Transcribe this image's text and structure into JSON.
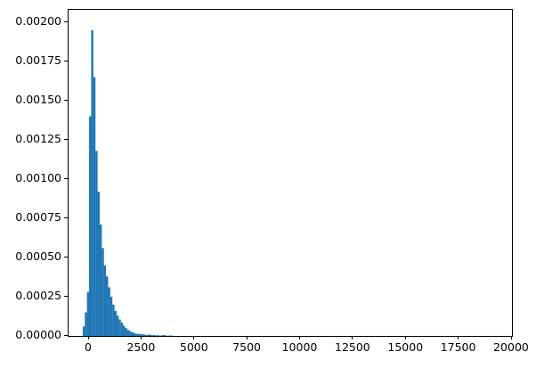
{
  "figure": {
    "background": "#ffffff",
    "frame_color": "#000000"
  },
  "chart_data": {
    "type": "bar",
    "subtype": "histogram",
    "title": "",
    "xlabel": "",
    "ylabel": "",
    "legend": null,
    "grid": false,
    "xlim": [
      -970,
      20000
    ],
    "ylim": [
      0,
      0.00208
    ],
    "bar_color": "#1f77b4",
    "x_ticks": [
      {
        "value": 0,
        "label": "0"
      },
      {
        "value": 2500,
        "label": "2500"
      },
      {
        "value": 5000,
        "label": "5000"
      },
      {
        "value": 7500,
        "label": "7500"
      },
      {
        "value": 10000,
        "label": "10000"
      },
      {
        "value": 12500,
        "label": "12500"
      },
      {
        "value": 15000,
        "label": "15000"
      },
      {
        "value": 17500,
        "label": "17500"
      },
      {
        "value": 20000,
        "label": "20000"
      }
    ],
    "y_ticks": [
      {
        "value": 0.0,
        "label": "0.00000"
      },
      {
        "value": 0.00025,
        "label": "0.00025"
      },
      {
        "value": 0.0005,
        "label": "0.00050"
      },
      {
        "value": 0.00075,
        "label": "0.00075"
      },
      {
        "value": 0.001,
        "label": "0.00100"
      },
      {
        "value": 0.00125,
        "label": "0.00125"
      },
      {
        "value": 0.0015,
        "label": "0.00150"
      },
      {
        "value": 0.00175,
        "label": "0.00175"
      },
      {
        "value": 0.002,
        "label": "0.00200"
      }
    ],
    "bins": {
      "start": -300,
      "width": 100,
      "densities": [
        6e-05,
        0.00015,
        0.00028,
        0.0014,
        0.00195,
        0.00165,
        0.00118,
        0.00092,
        0.00071,
        0.00056,
        0.00045,
        0.00038,
        0.00031,
        0.00025,
        0.0002,
        0.00016,
        0.00013,
        0.000105,
        8.5e-05,
        6.5e-05,
        5e-05,
        3.8e-05,
        3e-05,
        2.3e-05,
        1.8e-05,
        1.4e-05,
        1.2e-05,
        1.1e-05,
        1e-05,
        8e-06,
        6e-06,
        9e-06,
        5e-06,
        6e-06,
        3e-06,
        5e-06,
        2e-06,
        4e-06,
        6e-06,
        2e-06,
        1e-06,
        3e-06,
        1e-06
      ]
    }
  }
}
